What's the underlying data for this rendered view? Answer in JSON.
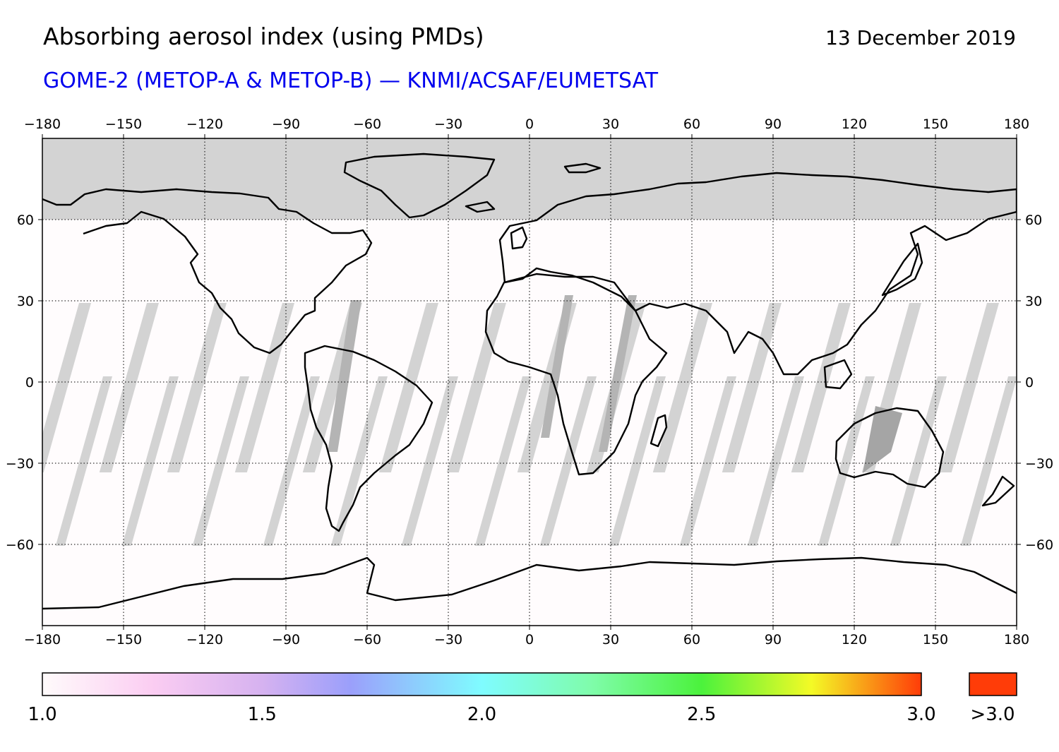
{
  "header": {
    "title": "Absorbing aerosol index (using PMDs)",
    "date": "13 December 2019",
    "subtitle": "GOME-2 (METOP-A & METOP-B) — KNMI/ACSAF/EUMETSAT"
  },
  "colors": {
    "subtitle": "#0000ee",
    "background_field": "#fffcfd",
    "no_data_light": "#d3d3d3",
    "no_data_dark": "#a5a5a5",
    "coastline": "#000000",
    "above_max": "#ff3c08"
  },
  "map": {
    "projection": "equirectangular",
    "lon_range": [
      -180,
      180
    ],
    "lat_range": [
      -90,
      90
    ],
    "lon_ticks": [
      -180,
      -150,
      -120,
      -90,
      -60,
      -30,
      0,
      30,
      60,
      90,
      120,
      150,
      180
    ],
    "lon_tick_labels": [
      "−180",
      "−150",
      "−120",
      "−90",
      "−60",
      "−30",
      "0",
      "30",
      "60",
      "90",
      "120",
      "150",
      "180"
    ],
    "lat_ticks": [
      60,
      30,
      0,
      -30,
      -60
    ],
    "lat_tick_labels": [
      "60",
      "30",
      "0",
      "−30",
      "−60"
    ],
    "grid": "dotted",
    "no_data_north_of_lat": 60,
    "no_data_south_of_lat": -90
  },
  "colorbar": {
    "min": 1.0,
    "max": 3.0,
    "ticks": [
      1.0,
      1.5,
      2.0,
      2.5,
      3.0
    ],
    "tick_labels": [
      "1.0",
      "1.5",
      "2.0",
      "2.5",
      "3.0"
    ],
    "stops": [
      {
        "value": 1.0,
        "color": "#fffbfb"
      },
      {
        "value": 1.25,
        "color": "#fbcdf2"
      },
      {
        "value": 1.5,
        "color": "#d6b2f0"
      },
      {
        "value": 1.7,
        "color": "#9b9ffb"
      },
      {
        "value": 2.0,
        "color": "#7ffcff"
      },
      {
        "value": 2.25,
        "color": "#7ffcaa"
      },
      {
        "value": 2.5,
        "color": "#4bf23c"
      },
      {
        "value": 2.75,
        "color": "#f4fa26"
      },
      {
        "value": 3.0,
        "color": "#ff3c08"
      }
    ],
    "over_label": ">3.0"
  }
}
